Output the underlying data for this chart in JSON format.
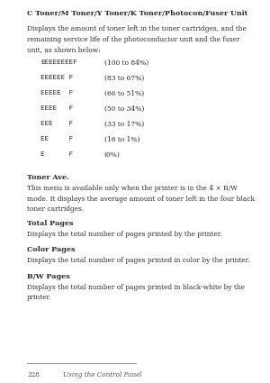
{
  "bg_color": "#ffffff",
  "title": "C Toner/M Toner/Y Toner/K Toner/Photocon/Fuser Unit",
  "intro_text": "Displays the amount of toner left in the toner cartridges, and the\nremaining service life of the photoconductor unit and the fuser\nunit, as shown below:",
  "table_rows": [
    [
      "EEEEEEEEF",
      "(100 to 84%)"
    ],
    [
      "EEEEEE F",
      "(83 to 67%)"
    ],
    [
      "EEEEE  F",
      "(66 to 51%)"
    ],
    [
      "EEEE   F",
      "(50 to 34%)"
    ],
    [
      "EEE    F",
      "(33 to 17%)"
    ],
    [
      "EE     F",
      "(16 to 1%)"
    ],
    [
      "E      F",
      "(0%)"
    ]
  ],
  "sections": [
    {
      "heading": "Toner Ave.",
      "body": "This menu is available only when the printer is in the 4 × B/W\nmode. It displays the average amount of toner left in the four black\ntoner cartridges."
    },
    {
      "heading": "Total Pages",
      "body": "Displays the total number of pages printed by the printer."
    },
    {
      "heading": "Color Pages",
      "body": "Displays the total number of pages printed in color by the printer."
    },
    {
      "heading": "B/W Pages",
      "body": "Displays the total number of pages printed in black-white by the\nprinter."
    }
  ],
  "footer_page": "228",
  "footer_text": "Using the Control Panel",
  "text_color": "#2a2a2a",
  "footer_color": "#555555",
  "title_fontsize": 5.8,
  "body_fontsize": 5.4,
  "heading_fontsize": 5.8,
  "table_fontsize": 5.4,
  "footer_fontsize": 5.2,
  "lm": 0.12,
  "rm": 0.95,
  "table_indent": 0.18,
  "table_col2": 0.46
}
